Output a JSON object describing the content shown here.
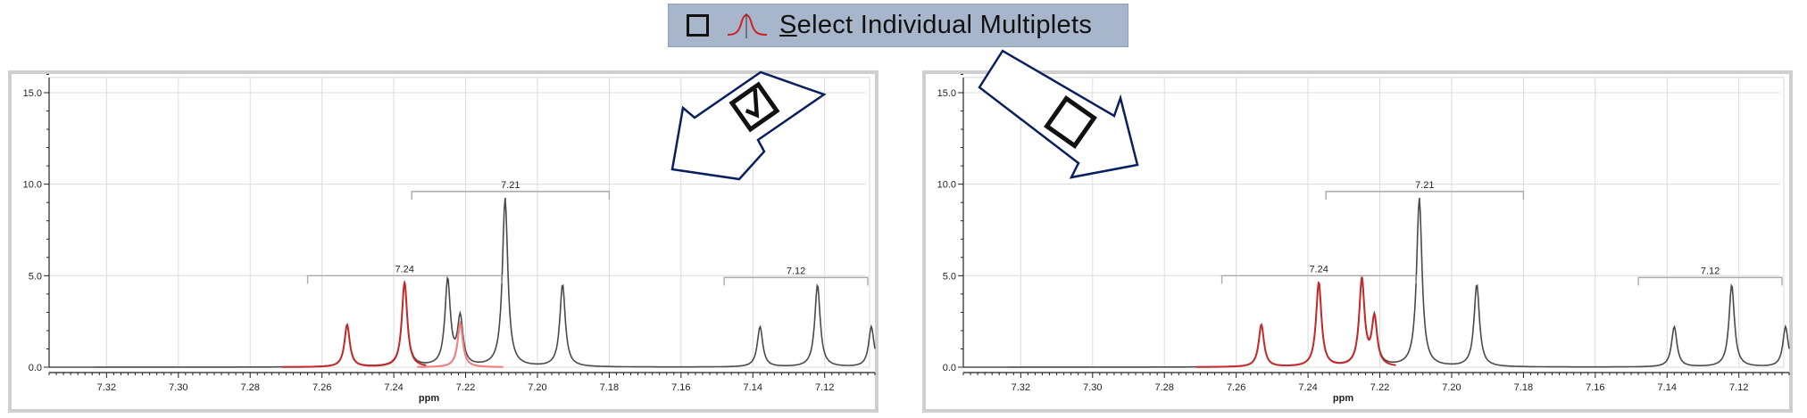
{
  "banner": {
    "checkbox_state": "unchecked",
    "icon": "multiplet-peak-icon",
    "label_first": "S",
    "label_rest": "elect Individual Multiplets"
  },
  "colors": {
    "spectrum": "#4a4a4a",
    "selected": "#c42a2a",
    "selected_light": "#f08282",
    "banner_bg": "#a7b6cb",
    "arrow_stroke": "#0a1f5e",
    "grid": "#dcdcdc"
  },
  "panels": [
    {
      "id": "left",
      "checkbox_icon": "checked-checkbox-icon",
      "x_axis_label": "ppm",
      "y_ticks": [
        "0.0",
        "5.0",
        "10.0",
        "15.0"
      ],
      "x_ticks": [
        "7.32",
        "7.30",
        "7.28",
        "7.26",
        "7.24",
        "7.22",
        "7.20",
        "7.18",
        "7.16",
        "7.14",
        "7.12"
      ],
      "multiplet_labels": [
        "7.24",
        "7.21",
        "7.12"
      ]
    },
    {
      "id": "right",
      "checkbox_icon": "empty-checkbox-icon",
      "x_axis_label": "ppm",
      "y_ticks": [
        "0.0",
        "5.0",
        "10.0",
        "15.0"
      ],
      "x_ticks": [
        "7.32",
        "7.30",
        "7.28",
        "7.26",
        "7.24",
        "7.22",
        "7.20",
        "7.18",
        "7.16",
        "7.14",
        "7.12"
      ],
      "multiplet_labels": [
        "7.24",
        "7.21",
        "7.12"
      ]
    }
  ],
  "chart_data": [
    {
      "type": "line",
      "xlabel": "ppm",
      "ylabel": "",
      "xlim": [
        7.336,
        7.106
      ],
      "ylim": [
        -0.5,
        16
      ],
      "peaks": [
        {
          "ppm": 7.253,
          "height": 2.3,
          "color": "selected"
        },
        {
          "ppm": 7.237,
          "height": 4.6,
          "color": "selected"
        },
        {
          "ppm": 7.225,
          "height": 4.7,
          "color": "spectrum"
        },
        {
          "ppm": 7.2215,
          "height": 2.6,
          "color": "spectrum"
        },
        {
          "ppm": 7.2215,
          "height": 2.4,
          "color": "selected_light"
        },
        {
          "ppm": 7.209,
          "height": 9.2,
          "color": "spectrum"
        },
        {
          "ppm": 7.193,
          "height": 4.5,
          "color": "spectrum"
        },
        {
          "ppm": 7.138,
          "height": 2.2,
          "color": "spectrum"
        },
        {
          "ppm": 7.122,
          "height": 4.5,
          "color": "spectrum"
        },
        {
          "ppm": 7.107,
          "height": 2.2,
          "color": "spectrum"
        }
      ],
      "multiplets": [
        {
          "label": "7.24",
          "from": 7.264,
          "to": 7.21,
          "level": 5.0
        },
        {
          "label": "7.21",
          "from": 7.235,
          "to": 7.18,
          "level": 9.6
        },
        {
          "label": "7.12",
          "from": 7.148,
          "to": 7.106,
          "level": 4.9
        }
      ]
    },
    {
      "type": "line",
      "xlabel": "ppm",
      "ylabel": "",
      "xlim": [
        7.336,
        7.106
      ],
      "ylim": [
        -0.5,
        16
      ],
      "peaks": [
        {
          "ppm": 7.253,
          "height": 2.3,
          "color": "selected"
        },
        {
          "ppm": 7.237,
          "height": 4.6,
          "color": "selected"
        },
        {
          "ppm": 7.225,
          "height": 4.7,
          "color": "selected"
        },
        {
          "ppm": 7.2215,
          "height": 2.6,
          "color": "selected"
        },
        {
          "ppm": 7.209,
          "height": 9.2,
          "color": "spectrum"
        },
        {
          "ppm": 7.193,
          "height": 4.5,
          "color": "spectrum"
        },
        {
          "ppm": 7.138,
          "height": 2.2,
          "color": "spectrum"
        },
        {
          "ppm": 7.122,
          "height": 4.5,
          "color": "spectrum"
        },
        {
          "ppm": 7.107,
          "height": 2.2,
          "color": "spectrum"
        }
      ],
      "multiplets": [
        {
          "label": "7.24",
          "from": 7.264,
          "to": 7.21,
          "level": 5.0
        },
        {
          "label": "7.21",
          "from": 7.235,
          "to": 7.18,
          "level": 9.6
        },
        {
          "label": "7.12",
          "from": 7.148,
          "to": 7.106,
          "level": 4.9
        }
      ]
    }
  ]
}
